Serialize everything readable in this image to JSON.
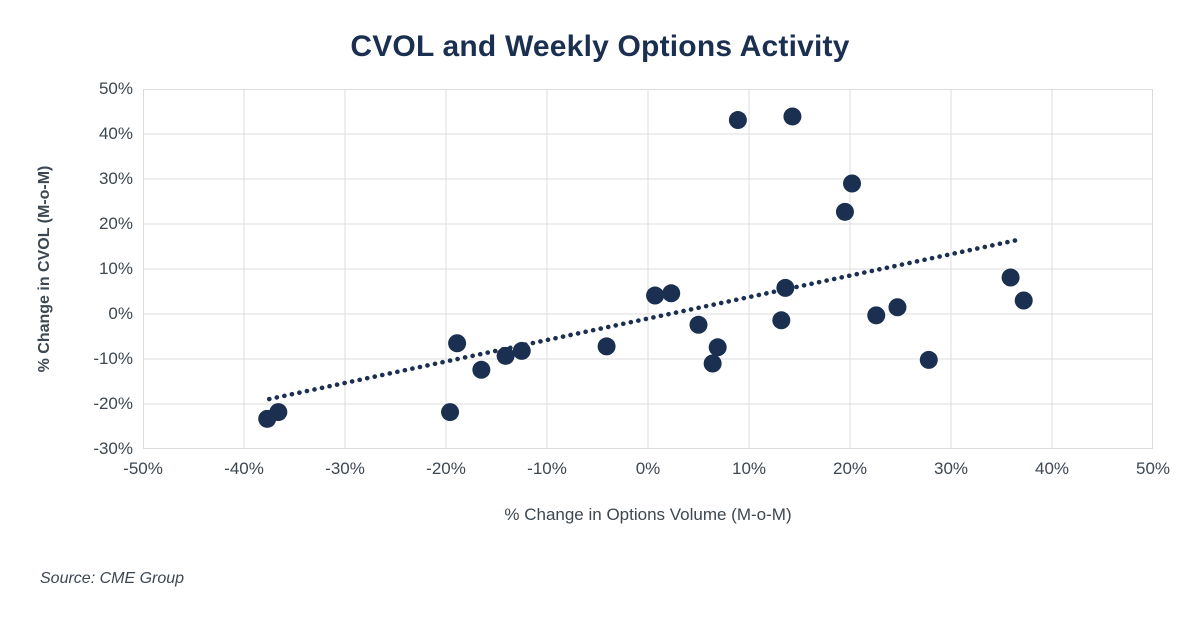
{
  "page": {
    "source": "Source: CME Group"
  },
  "chart_data": {
    "type": "scatter",
    "title": "CVOL and Weekly Options Activity",
    "xlabel": "% Change in Options Volume (M-o-M)",
    "ylabel": "% Change in CVOL (M-o-M)",
    "xlim": [
      -50,
      50
    ],
    "ylim": [
      -30,
      50
    ],
    "grid": true,
    "legend": "none",
    "x_ticks": [
      {
        "v": -50,
        "label": "-50%"
      },
      {
        "v": -40,
        "label": "-40%"
      },
      {
        "v": -30,
        "label": "-30%"
      },
      {
        "v": -20,
        "label": "-20%"
      },
      {
        "v": -10,
        "label": "-10%"
      },
      {
        "v": 0,
        "label": "0%"
      },
      {
        "v": 10,
        "label": "10%"
      },
      {
        "v": 20,
        "label": "20%"
      },
      {
        "v": 30,
        "label": "30%"
      },
      {
        "v": 40,
        "label": "40%"
      },
      {
        "v": 50,
        "label": "50%"
      }
    ],
    "y_ticks": [
      {
        "v": 50,
        "label": "50%"
      },
      {
        "v": 40,
        "label": "40%"
      },
      {
        "v": 30,
        "label": "30%"
      },
      {
        "v": 20,
        "label": "20%"
      },
      {
        "v": 10,
        "label": "10%"
      },
      {
        "v": 0,
        "label": "0%"
      },
      {
        "v": -10,
        "label": "-10%"
      },
      {
        "v": -20,
        "label": "-20%"
      },
      {
        "v": -30,
        "label": "-30%"
      }
    ],
    "points": [
      {
        "x": -37.7,
        "y": -23.3
      },
      {
        "x": -36.6,
        "y": -21.8
      },
      {
        "x": -19.6,
        "y": -21.8
      },
      {
        "x": -18.9,
        "y": -6.5
      },
      {
        "x": -16.5,
        "y": -12.4
      },
      {
        "x": -14.1,
        "y": -9.3
      },
      {
        "x": -12.5,
        "y": -8.2
      },
      {
        "x": -4.1,
        "y": -7.2
      },
      {
        "x": 0.7,
        "y": 4.1
      },
      {
        "x": 2.3,
        "y": 4.6
      },
      {
        "x": 5.0,
        "y": -2.4
      },
      {
        "x": 6.4,
        "y": -11.0
      },
      {
        "x": 6.9,
        "y": -7.4
      },
      {
        "x": 8.9,
        "y": 43.1
      },
      {
        "x": 14.3,
        "y": 43.9
      },
      {
        "x": 13.6,
        "y": 5.8
      },
      {
        "x": 13.2,
        "y": -1.4
      },
      {
        "x": 19.5,
        "y": 22.7
      },
      {
        "x": 20.2,
        "y": 29.0
      },
      {
        "x": 22.6,
        "y": -0.3
      },
      {
        "x": 24.7,
        "y": 1.5
      },
      {
        "x": 27.8,
        "y": -10.2
      },
      {
        "x": 35.9,
        "y": 8.1
      },
      {
        "x": 37.2,
        "y": 3.0
      }
    ],
    "trendline": {
      "style": "dotted",
      "x1": -37.5,
      "y1": -18.9,
      "x2": 36.7,
      "y2": 16.5
    },
    "marker_radius": 9,
    "colors": {
      "marker": "#1b3050",
      "trend": "#1b3050",
      "title": "#1b3050",
      "axis_text": "#3d4751",
      "grid": "#dcdcdc",
      "background": "#ffffff"
    }
  }
}
